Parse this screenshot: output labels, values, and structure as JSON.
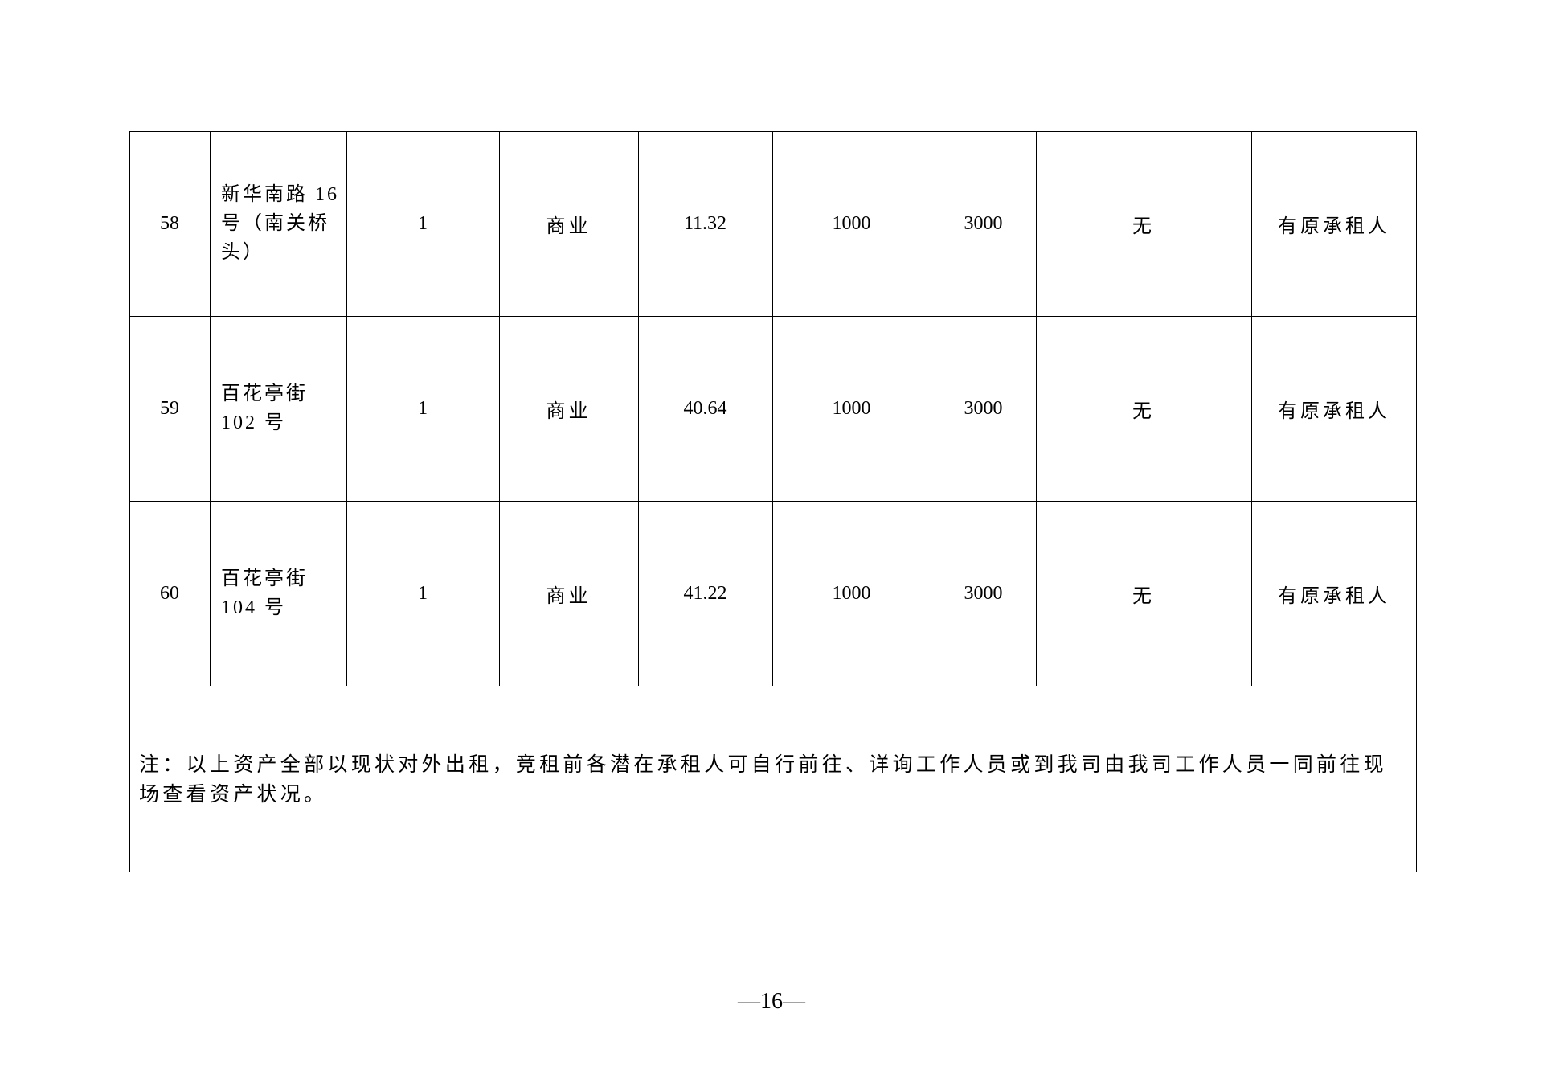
{
  "table": {
    "rows": [
      {
        "no": "58",
        "address": "新华南路 16 号（南关桥头）",
        "count": "1",
        "use": "商业",
        "area": "11.32",
        "price1": "1000",
        "price2": "3000",
        "col8": "无",
        "remark": "有原承租人"
      },
      {
        "no": "59",
        "address": "百花亭街 102 号",
        "count": "1",
        "use": "商业",
        "area": "40.64",
        "price1": "1000",
        "price2": "3000",
        "col8": "无",
        "remark": "有原承租人"
      },
      {
        "no": "60",
        "address": "百花亭街 104 号",
        "count": "1",
        "use": "商业",
        "area": "41.22",
        "price1": "1000",
        "price2": "3000",
        "col8": "无",
        "remark": "有原承租人"
      }
    ],
    "note": "注：以上资产全部以现状对外出租，竞租前各潜在承租人可自行前往、详询工作人员或到我司由我司工作人员一同前往现场查看资产状况。"
  },
  "page_number": "—16—"
}
